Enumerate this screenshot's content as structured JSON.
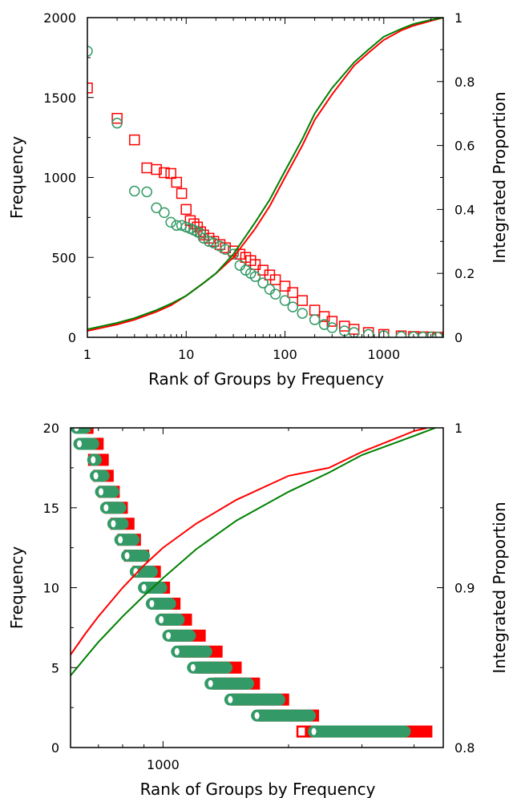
{
  "colors": {
    "red": "#ff0000",
    "green": "#339966",
    "line_green": "#008000"
  },
  "chart_data": [
    {
      "type": "scatter",
      "xlabel": "Rank of Groups by Frequency",
      "ylabel": "Frequency",
      "y2label": "Integrated Proportion",
      "xscale": "log",
      "xlim": [
        1,
        4000
      ],
      "ylim": [
        0,
        2000
      ],
      "y2lim": [
        0,
        1
      ],
      "x_ticks": [
        1,
        10,
        100,
        1000
      ],
      "x_tick_labels": [
        "1",
        "10",
        "100",
        "1000"
      ],
      "y_ticks": [
        0,
        500,
        1000,
        1500,
        2000
      ],
      "y_tick_labels": [
        "0",
        "500",
        "1000",
        "1500",
        "2000"
      ],
      "y2_ticks": [
        0,
        0.2,
        0.4,
        0.6,
        0.8,
        1
      ],
      "y2_tick_labels": [
        "0",
        "0.2",
        "0.4",
        "0.6",
        "0.8",
        "1"
      ],
      "series": [
        {
          "marker": "square",
          "color": "red",
          "axis": "left",
          "points": [
            [
              1,
              1560
            ],
            [
              2,
              1370
            ],
            [
              3,
              1235
            ],
            [
              4,
              1060
            ],
            [
              5,
              1050
            ],
            [
              6,
              1030
            ],
            [
              7,
              1025
            ],
            [
              8,
              970
            ],
            [
              9,
              900
            ],
            [
              10,
              800
            ],
            [
              11,
              730
            ],
            [
              12,
              710
            ],
            [
              13,
              690
            ],
            [
              14,
              660
            ],
            [
              15,
              640
            ],
            [
              17,
              620
            ],
            [
              19,
              600
            ],
            [
              22,
              580
            ],
            [
              25,
              560
            ],
            [
              30,
              540
            ],
            [
              35,
              520
            ],
            [
              40,
              500
            ],
            [
              45,
              480
            ],
            [
              50,
              455
            ],
            [
              60,
              420
            ],
            [
              70,
              390
            ],
            [
              80,
              360
            ],
            [
              100,
              320
            ],
            [
              120,
              280
            ],
            [
              150,
              230
            ],
            [
              200,
              170
            ],
            [
              250,
              130
            ],
            [
              300,
              100
            ],
            [
              400,
              70
            ],
            [
              500,
              50
            ],
            [
              700,
              30
            ],
            [
              1000,
              18
            ],
            [
              1500,
              9
            ],
            [
              2000,
              5
            ],
            [
              2500,
              3
            ],
            [
              3000,
              2
            ],
            [
              3500,
              1
            ]
          ]
        },
        {
          "marker": "circle",
          "color": "green",
          "axis": "left",
          "points": [
            [
              1,
              1790
            ],
            [
              2,
              1340
            ],
            [
              3,
              915
            ],
            [
              4,
              910
            ],
            [
              5,
              810
            ],
            [
              6,
              780
            ],
            [
              7,
              720
            ],
            [
              8,
              700
            ],
            [
              9,
              700
            ],
            [
              10,
              690
            ],
            [
              11,
              680
            ],
            [
              12,
              670
            ],
            [
              13,
              660
            ],
            [
              14,
              650
            ],
            [
              15,
              620
            ],
            [
              17,
              600
            ],
            [
              19,
              590
            ],
            [
              22,
              570
            ],
            [
              25,
              550
            ],
            [
              30,
              520
            ],
            [
              35,
              450
            ],
            [
              40,
              420
            ],
            [
              45,
              400
            ],
            [
              50,
              380
            ],
            [
              60,
              340
            ],
            [
              70,
              300
            ],
            [
              80,
              270
            ],
            [
              100,
              230
            ],
            [
              120,
              190
            ],
            [
              150,
              150
            ],
            [
              200,
              110
            ],
            [
              250,
              80
            ],
            [
              300,
              60
            ],
            [
              400,
              40
            ],
            [
              500,
              30
            ],
            [
              700,
              18
            ],
            [
              1000,
              10
            ],
            [
              1500,
              5
            ],
            [
              2000,
              3
            ],
            [
              2500,
              2
            ],
            [
              3000,
              1
            ],
            [
              3500,
              1
            ]
          ]
        },
        {
          "type": "line",
          "color": "red",
          "axis": "right",
          "points": [
            [
              1,
              0.02
            ],
            [
              2,
              0.04
            ],
            [
              3,
              0.055
            ],
            [
              5,
              0.08
            ],
            [
              7,
              0.1
            ],
            [
              10,
              0.13
            ],
            [
              15,
              0.17
            ],
            [
              20,
              0.2
            ],
            [
              30,
              0.25
            ],
            [
              50,
              0.34
            ],
            [
              70,
              0.41
            ],
            [
              100,
              0.5
            ],
            [
              150,
              0.6
            ],
            [
              200,
              0.68
            ],
            [
              300,
              0.76
            ],
            [
              500,
              0.85
            ],
            [
              700,
              0.89
            ],
            [
              1000,
              0.93
            ],
            [
              1500,
              0.96
            ],
            [
              2000,
              0.975
            ],
            [
              3000,
              0.99
            ],
            [
              4000,
              1.0
            ]
          ]
        },
        {
          "type": "line",
          "color": "line_green",
          "axis": "right",
          "points": [
            [
              1,
              0.025
            ],
            [
              2,
              0.045
            ],
            [
              3,
              0.06
            ],
            [
              5,
              0.085
            ],
            [
              7,
              0.105
            ],
            [
              10,
              0.13
            ],
            [
              15,
              0.17
            ],
            [
              20,
              0.2
            ],
            [
              30,
              0.26
            ],
            [
              50,
              0.36
            ],
            [
              70,
              0.43
            ],
            [
              100,
              0.52
            ],
            [
              150,
              0.62
            ],
            [
              200,
              0.7
            ],
            [
              300,
              0.78
            ],
            [
              500,
              0.86
            ],
            [
              700,
              0.9
            ],
            [
              1000,
              0.94
            ],
            [
              1500,
              0.965
            ],
            [
              2000,
              0.98
            ],
            [
              3000,
              0.993
            ],
            [
              4000,
              1.0
            ]
          ]
        }
      ]
    },
    {
      "type": "scatter",
      "xlabel": "Rank of Groups by Frequency",
      "ylabel": "Frequency",
      "y2label": "Integrated Proportion",
      "xscale": "log",
      "xlim": [
        600,
        4700
      ],
      "ylim": [
        0,
        20
      ],
      "y2lim": [
        0.8,
        1
      ],
      "x_ticks": [
        1000
      ],
      "x_tick_labels": [
        "1000"
      ],
      "y_ticks": [
        0,
        5,
        10,
        15,
        20
      ],
      "y_tick_labels": [
        "0",
        "5",
        "10",
        "15",
        "20"
      ],
      "y2_ticks": [
        0.8,
        0.9,
        1
      ],
      "y2_tick_labels": [
        "0.8",
        "0.9",
        "1"
      ],
      "series": [
        {
          "marker": "square",
          "color": "red",
          "axis": "left",
          "ranges": [
            [
              20,
              657,
              662
            ],
            [
              19,
              660,
              700
            ],
            [
              18,
              680,
              720
            ],
            [
              17,
              700,
              740
            ],
            [
              16,
              720,
              765
            ],
            [
              15,
              745,
              800
            ],
            [
              14,
              770,
              830
            ],
            [
              13,
              800,
              860
            ],
            [
              12,
              830,
              900
            ],
            [
              11,
              870,
              960
            ],
            [
              10,
              920,
              1010
            ],
            [
              9,
              960,
              1070
            ],
            [
              8,
              1010,
              1140
            ],
            [
              7,
              1060,
              1230
            ],
            [
              6,
              1130,
              1350
            ],
            [
              5,
              1240,
              1500
            ],
            [
              4,
              1360,
              1660
            ],
            [
              3,
              1500,
              1950
            ],
            [
              2,
              1750,
              2300
            ],
            [
              1,
              2150,
              4300
            ]
          ]
        },
        {
          "marker": "circle",
          "color": "green",
          "axis": "left",
          "ranges": [
            [
              20,
              620,
              650
            ],
            [
              19,
              630,
              680
            ],
            [
              18,
              680,
              690
            ],
            [
              17,
              690,
              720
            ],
            [
              16,
              710,
              760
            ],
            [
              15,
              730,
              790
            ],
            [
              14,
              760,
              800
            ],
            [
              13,
              790,
              850
            ],
            [
              12,
              820,
              900
            ],
            [
              11,
              860,
              940
            ],
            [
              10,
              900,
              990
            ],
            [
              9,
              940,
              1040
            ],
            [
              8,
              990,
              1090
            ],
            [
              7,
              1030,
              1160
            ],
            [
              6,
              1080,
              1270
            ],
            [
              5,
              1180,
              1420
            ],
            [
              4,
              1300,
              1600
            ],
            [
              3,
              1450,
              1900
            ],
            [
              2,
              1680,
              2250
            ],
            [
              1,
              2300,
              3800
            ]
          ]
        },
        {
          "type": "line",
          "color": "red",
          "axis": "right",
          "points": [
            [
              600,
              0.858
            ],
            [
              650,
              0.871
            ],
            [
              700,
              0.882
            ],
            [
              800,
              0.9
            ],
            [
              900,
              0.914
            ],
            [
              1000,
              0.925
            ],
            [
              1200,
              0.94
            ],
            [
              1500,
              0.955
            ],
            [
              2000,
              0.97
            ],
            [
              2500,
              0.975
            ],
            [
              3000,
              0.985
            ],
            [
              4000,
              0.998
            ],
            [
              4300,
              1.0
            ]
          ]
        },
        {
          "type": "line",
          "color": "line_green",
          "axis": "right",
          "points": [
            [
              600,
              0.845
            ],
            [
              650,
              0.856
            ],
            [
              700,
              0.866
            ],
            [
              800,
              0.882
            ],
            [
              900,
              0.895
            ],
            [
              1000,
              0.906
            ],
            [
              1200,
              0.924
            ],
            [
              1500,
              0.942
            ],
            [
              2000,
              0.96
            ],
            [
              2500,
              0.972
            ],
            [
              3000,
              0.983
            ],
            [
              4000,
              0.995
            ],
            [
              4500,
              1.0
            ]
          ]
        }
      ]
    }
  ]
}
